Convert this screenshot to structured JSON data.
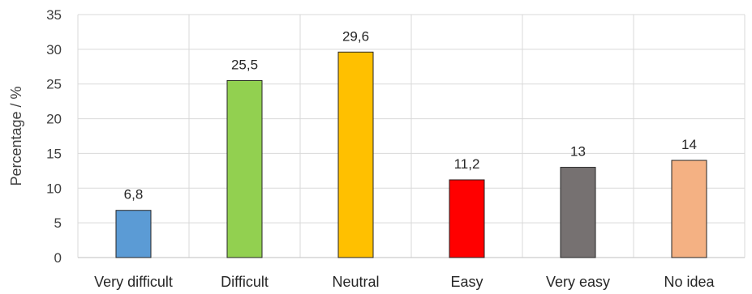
{
  "chart_data": {
    "type": "bar",
    "title": "",
    "xlabel": "",
    "ylabel": "Percentage / %",
    "ylim": [
      0,
      35
    ],
    "yticks": [
      0,
      5,
      10,
      15,
      20,
      25,
      30,
      35
    ],
    "grid": true,
    "legend": "none",
    "categories": [
      "Very difficult",
      "Difficult",
      "Neutral",
      "Easy",
      "Very easy",
      "No idea"
    ],
    "values": [
      6.8,
      25.5,
      29.6,
      11.2,
      13,
      14
    ],
    "data_labels": [
      "6,8",
      "25,5",
      "29,6",
      "11,2",
      "13",
      "14"
    ],
    "colors": [
      "#5b9bd5",
      "#92d050",
      "#ffc000",
      "#ff0000",
      "#767171",
      "#f4b183"
    ]
  }
}
